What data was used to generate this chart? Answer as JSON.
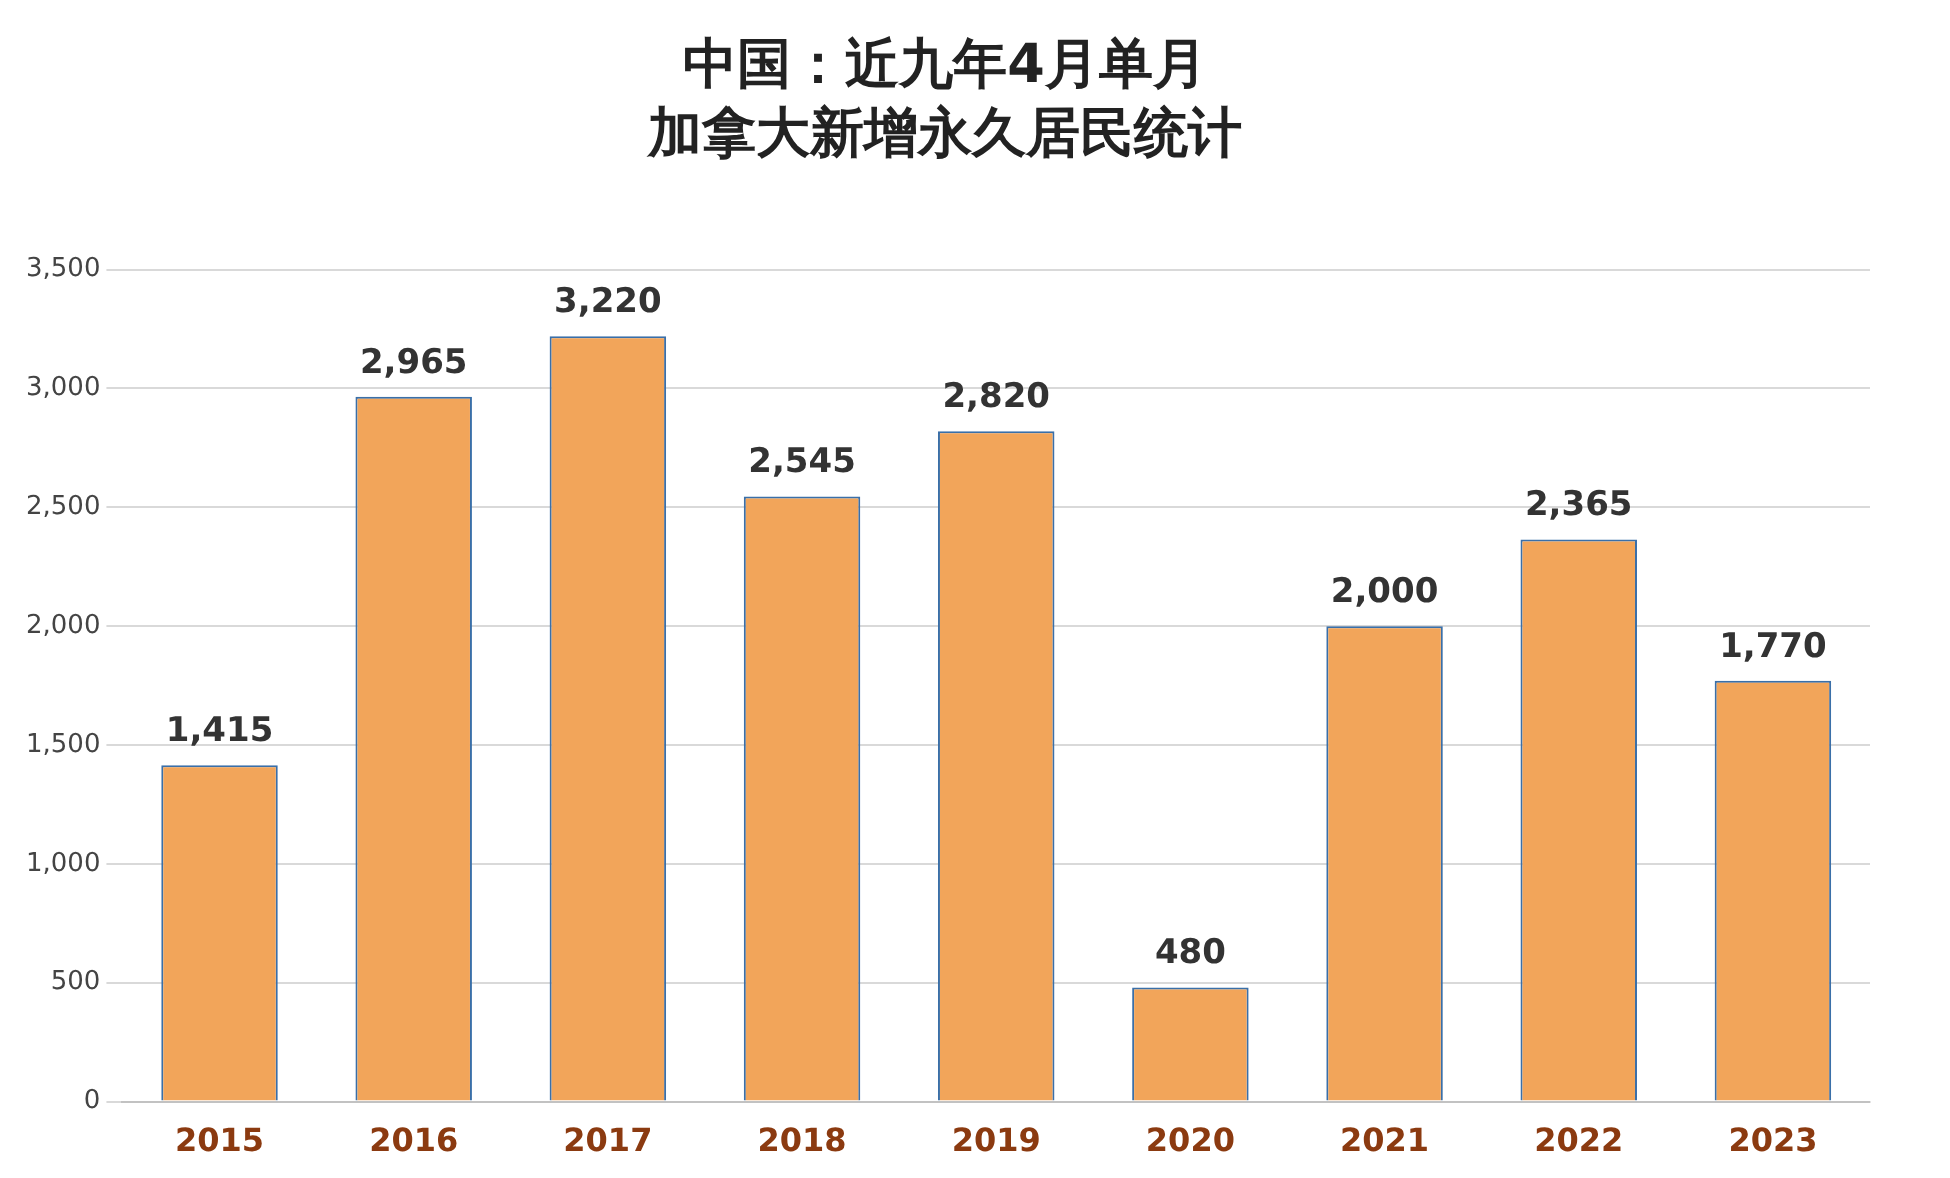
{
  "chart_data": {
    "type": "bar",
    "title": "中国：近九年4月单月",
    "subtitle": "加拿大新增永久居民统计",
    "categories": [
      "2015",
      "2016",
      "2017",
      "2018",
      "2019",
      "2020",
      "2021",
      "2022",
      "2023"
    ],
    "values": [
      1415,
      2965,
      3220,
      2545,
      2820,
      480,
      2000,
      2365,
      1770
    ],
    "value_labels": [
      "1,415",
      "2,965",
      "3,220",
      "2,545",
      "2,820",
      "480",
      "2,000",
      "2,365",
      "1,770"
    ],
    "color": "#f2a55a",
    "ylim": [
      0,
      3500
    ],
    "yticks": [
      0,
      500,
      {
        "value": 1000,
        "label": "1,000"
      },
      {
        "value": 1500,
        "label": "1,500"
      },
      {
        "value": 2000,
        "label": "2,000"
      },
      {
        "value": 2500,
        "label": "2,500"
      },
      {
        "value": 3000,
        "label": "3,000"
      },
      {
        "value": 3500,
        "label": "3,500"
      }
    ],
    "grid": "y",
    "legend": false
  }
}
